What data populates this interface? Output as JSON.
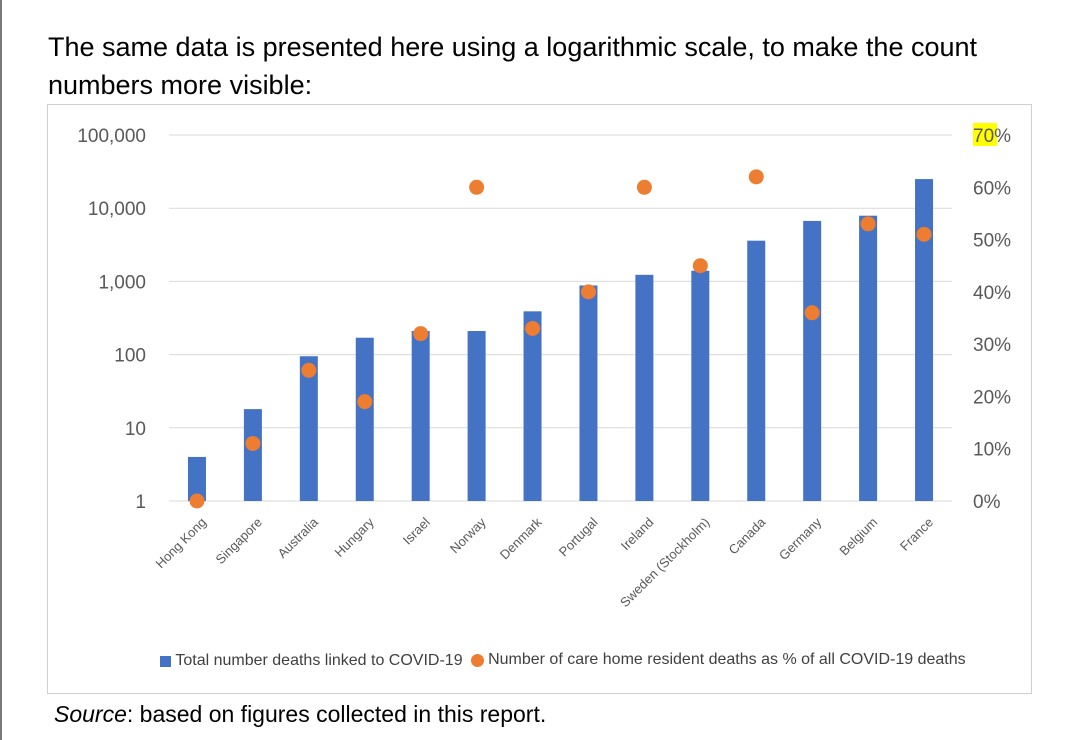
{
  "intro": {
    "line1": "The same data is presented here using a logarithmic scale, to make the count",
    "line2": "numbers more visible:"
  },
  "source": {
    "label": "Source",
    "text": ": based on figures collected in this report."
  },
  "colors": {
    "bar": "#4472c4",
    "dot": "#ed7d31",
    "grid": "#d9d9d9",
    "highlight": "#ffff00",
    "axis_text": "#595959"
  },
  "chart_data": {
    "type": "bar",
    "title": "",
    "categories": [
      "Hong Kong",
      "Singapore",
      "Australia",
      "Hungary",
      "Israel",
      "Norway",
      "Denmark",
      "Portugal",
      "Ireland",
      "Sweden (Stockholm)",
      "Canada",
      "Germany",
      "Belgium",
      "France"
    ],
    "series": [
      {
        "name": "Total number deaths linked to COVID-19",
        "type": "bar",
        "axis": "left",
        "values": [
          4,
          18,
          95,
          170,
          210,
          210,
          390,
          880,
          1230,
          1400,
          3600,
          6700,
          7900,
          25000
        ]
      },
      {
        "name": "Number of care home resident deaths as % of all COVID-19 deaths",
        "type": "scatter",
        "axis": "right",
        "values": [
          0,
          11,
          25,
          19,
          32,
          60,
          33,
          40,
          60,
          45,
          62,
          36,
          53,
          51
        ]
      }
    ],
    "y_left": {
      "scale": "log",
      "range": [
        1,
        100000
      ],
      "ticks": [
        1,
        10,
        100,
        1000,
        10000,
        100000
      ],
      "tick_labels": [
        "1",
        "10",
        "100",
        "1,000",
        "10,000",
        "100,000"
      ]
    },
    "y_right": {
      "scale": "linear",
      "range": [
        0,
        70
      ],
      "ticks": [
        0,
        10,
        20,
        30,
        40,
        50,
        60,
        70
      ],
      "tick_labels": [
        "0%",
        "10%",
        "20%",
        "30%",
        "40%",
        "50%",
        "60%",
        "70%"
      ],
      "highlighted_tick": "70"
    },
    "grid": true,
    "legend_position": "bottom"
  }
}
